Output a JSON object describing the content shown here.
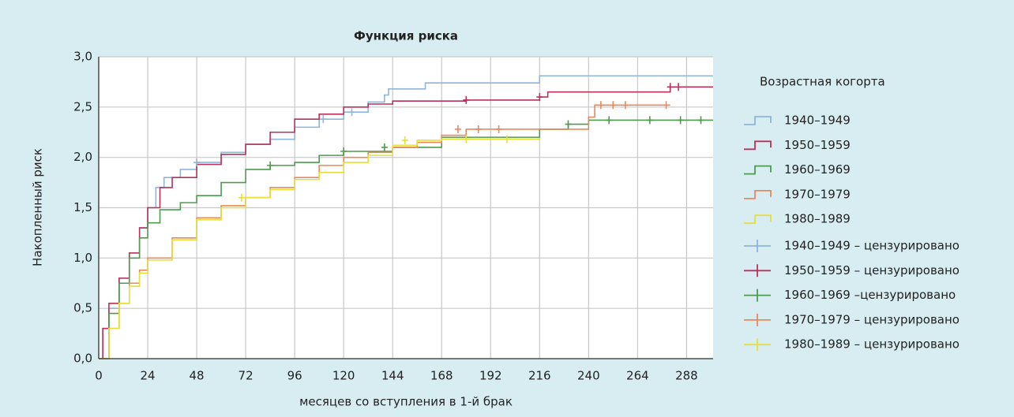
{
  "chart_data": {
    "type": "line",
    "title": "Функция риска",
    "xlabel": "месяцев со вступления в 1-й брак",
    "ylabel": "Накопленный риск",
    "legend_title": "Возрастная когорта",
    "xlim": [
      0,
      301
    ],
    "ylim": [
      0,
      3
    ],
    "xticks": [
      0,
      24,
      48,
      72,
      96,
      120,
      144,
      168,
      192,
      216,
      240,
      264,
      288
    ],
    "yticks": [
      {
        "value": 0,
        "label": "0,0"
      },
      {
        "value": 0.5,
        "label": "0,5"
      },
      {
        "value": 1,
        "label": "1,0"
      },
      {
        "value": 1.5,
        "label": "1,5"
      },
      {
        "value": 2,
        "label": "2,0"
      },
      {
        "value": 2.5,
        "label": "2,5"
      },
      {
        "value": 3,
        "label": "3,0"
      }
    ],
    "grid": true,
    "series": [
      {
        "name": "1940–1949",
        "color": "#8fb5dc",
        "style": "step",
        "x": [
          0,
          2,
          5,
          10,
          15,
          20,
          24,
          28,
          32,
          40,
          48,
          60,
          72,
          84,
          96,
          108,
          120,
          132,
          140,
          142,
          160,
          216,
          301
        ],
        "values": [
          0,
          0.3,
          0.5,
          0.8,
          1.0,
          1.3,
          1.5,
          1.7,
          1.8,
          1.88,
          1.95,
          2.05,
          2.13,
          2.18,
          2.3,
          2.38,
          2.45,
          2.55,
          2.62,
          2.68,
          2.74,
          2.81,
          2.81
        ]
      },
      {
        "name": "1950–1959",
        "color": "#b8325a",
        "style": "step",
        "x": [
          0,
          2,
          5,
          10,
          15,
          20,
          24,
          30,
          36,
          48,
          60,
          72,
          84,
          96,
          108,
          120,
          132,
          144,
          180,
          216,
          220,
          280,
          301
        ],
        "values": [
          0,
          0.3,
          0.55,
          0.8,
          1.05,
          1.3,
          1.5,
          1.7,
          1.8,
          1.93,
          2.03,
          2.13,
          2.25,
          2.38,
          2.43,
          2.5,
          2.53,
          2.56,
          2.57,
          2.6,
          2.65,
          2.7,
          2.7
        ]
      },
      {
        "name": "1960–1969",
        "color": "#4f9a4f",
        "style": "step",
        "x": [
          0,
          5,
          10,
          15,
          20,
          24,
          30,
          40,
          48,
          60,
          72,
          84,
          96,
          108,
          120,
          144,
          168,
          216,
          230,
          240,
          301
        ],
        "values": [
          0,
          0.45,
          0.75,
          1.0,
          1.2,
          1.35,
          1.48,
          1.55,
          1.62,
          1.75,
          1.88,
          1.92,
          1.95,
          2.02,
          2.06,
          2.1,
          2.2,
          2.28,
          2.33,
          2.37,
          2.37
        ]
      },
      {
        "name": "1970–1979",
        "color": "#e8895a",
        "style": "step",
        "x": [
          0,
          5,
          10,
          15,
          20,
          24,
          36,
          48,
          60,
          72,
          84,
          96,
          108,
          120,
          132,
          144,
          156,
          168,
          180,
          200,
          240,
          243,
          280
        ],
        "values": [
          0,
          0.3,
          0.55,
          0.75,
          0.88,
          1.0,
          1.2,
          1.4,
          1.52,
          1.6,
          1.7,
          1.8,
          1.92,
          2.0,
          2.05,
          2.1,
          2.15,
          2.22,
          2.28,
          2.28,
          2.4,
          2.52,
          2.52
        ]
      },
      {
        "name": "1980–1989",
        "color": "#e6df3c",
        "style": "step",
        "x": [
          0,
          5,
          10,
          15,
          20,
          24,
          36,
          48,
          60,
          72,
          84,
          96,
          108,
          120,
          132,
          144,
          156,
          168,
          216
        ],
        "values": [
          0,
          0.3,
          0.55,
          0.72,
          0.85,
          0.98,
          1.18,
          1.38,
          1.5,
          1.6,
          1.68,
          1.78,
          1.85,
          1.95,
          2.02,
          2.12,
          2.17,
          2.18,
          2.18
        ]
      },
      {
        "name": "1940–1949 – цензурировано",
        "color": "#8fb5dc",
        "style": "censored",
        "x": [
          48,
          110,
          124
        ],
        "values": [
          1.95,
          2.38,
          2.45
        ]
      },
      {
        "name": "1950–1959 – цензурировано",
        "color": "#b8325a",
        "style": "censored",
        "x": [
          180,
          216,
          280,
          284
        ],
        "values": [
          2.57,
          2.6,
          2.7,
          2.7
        ]
      },
      {
        "name": "1960–1969 –цензурировано",
        "color": "#4f9a4f",
        "style": "censored",
        "x": [
          84,
          120,
          140,
          230,
          250,
          270,
          285,
          295
        ],
        "values": [
          1.92,
          2.06,
          2.1,
          2.33,
          2.37,
          2.37,
          2.37,
          2.37
        ]
      },
      {
        "name": "1970–1979 – цензурировано",
        "color": "#e8895a",
        "style": "censored",
        "x": [
          176,
          186,
          196,
          246,
          252,
          258,
          278
        ],
        "values": [
          2.28,
          2.28,
          2.28,
          2.52,
          2.52,
          2.52,
          2.52
        ]
      },
      {
        "name": "1980–1989 – цензурировано",
        "color": "#e6df3c",
        "style": "censored",
        "x": [
          70,
          150,
          180,
          200
        ],
        "values": [
          1.6,
          2.17,
          2.18,
          2.18
        ]
      }
    ]
  }
}
